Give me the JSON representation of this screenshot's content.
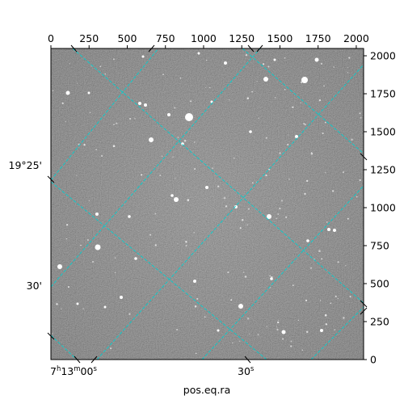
{
  "chart_data": {
    "type": "image",
    "title": "",
    "xlabel": "pos.eq.ra",
    "ylabel": "",
    "pixel_axes": {
      "x_range": [
        0,
        2048
      ],
      "y_range": [
        0,
        2048
      ],
      "top_ticks": [
        0,
        250,
        500,
        750,
        1000,
        1250,
        1500,
        1750,
        2000
      ],
      "right_ticks": [
        0,
        250,
        500,
        750,
        1000,
        1250,
        1500,
        1750,
        2000
      ]
    },
    "world_axes": {
      "ra_labels": [
        {
          "h": "7",
          "m": "13",
          "s": "00",
          "sup_h": "h",
          "sup_m": "m",
          "sup_s": "s"
        },
        {
          "text": "30",
          "sup": "s"
        }
      ],
      "dec_labels": [
        "19°25'",
        "30'"
      ]
    },
    "grid": true,
    "grid_color": "#00d0d0",
    "colormap": "gray"
  }
}
